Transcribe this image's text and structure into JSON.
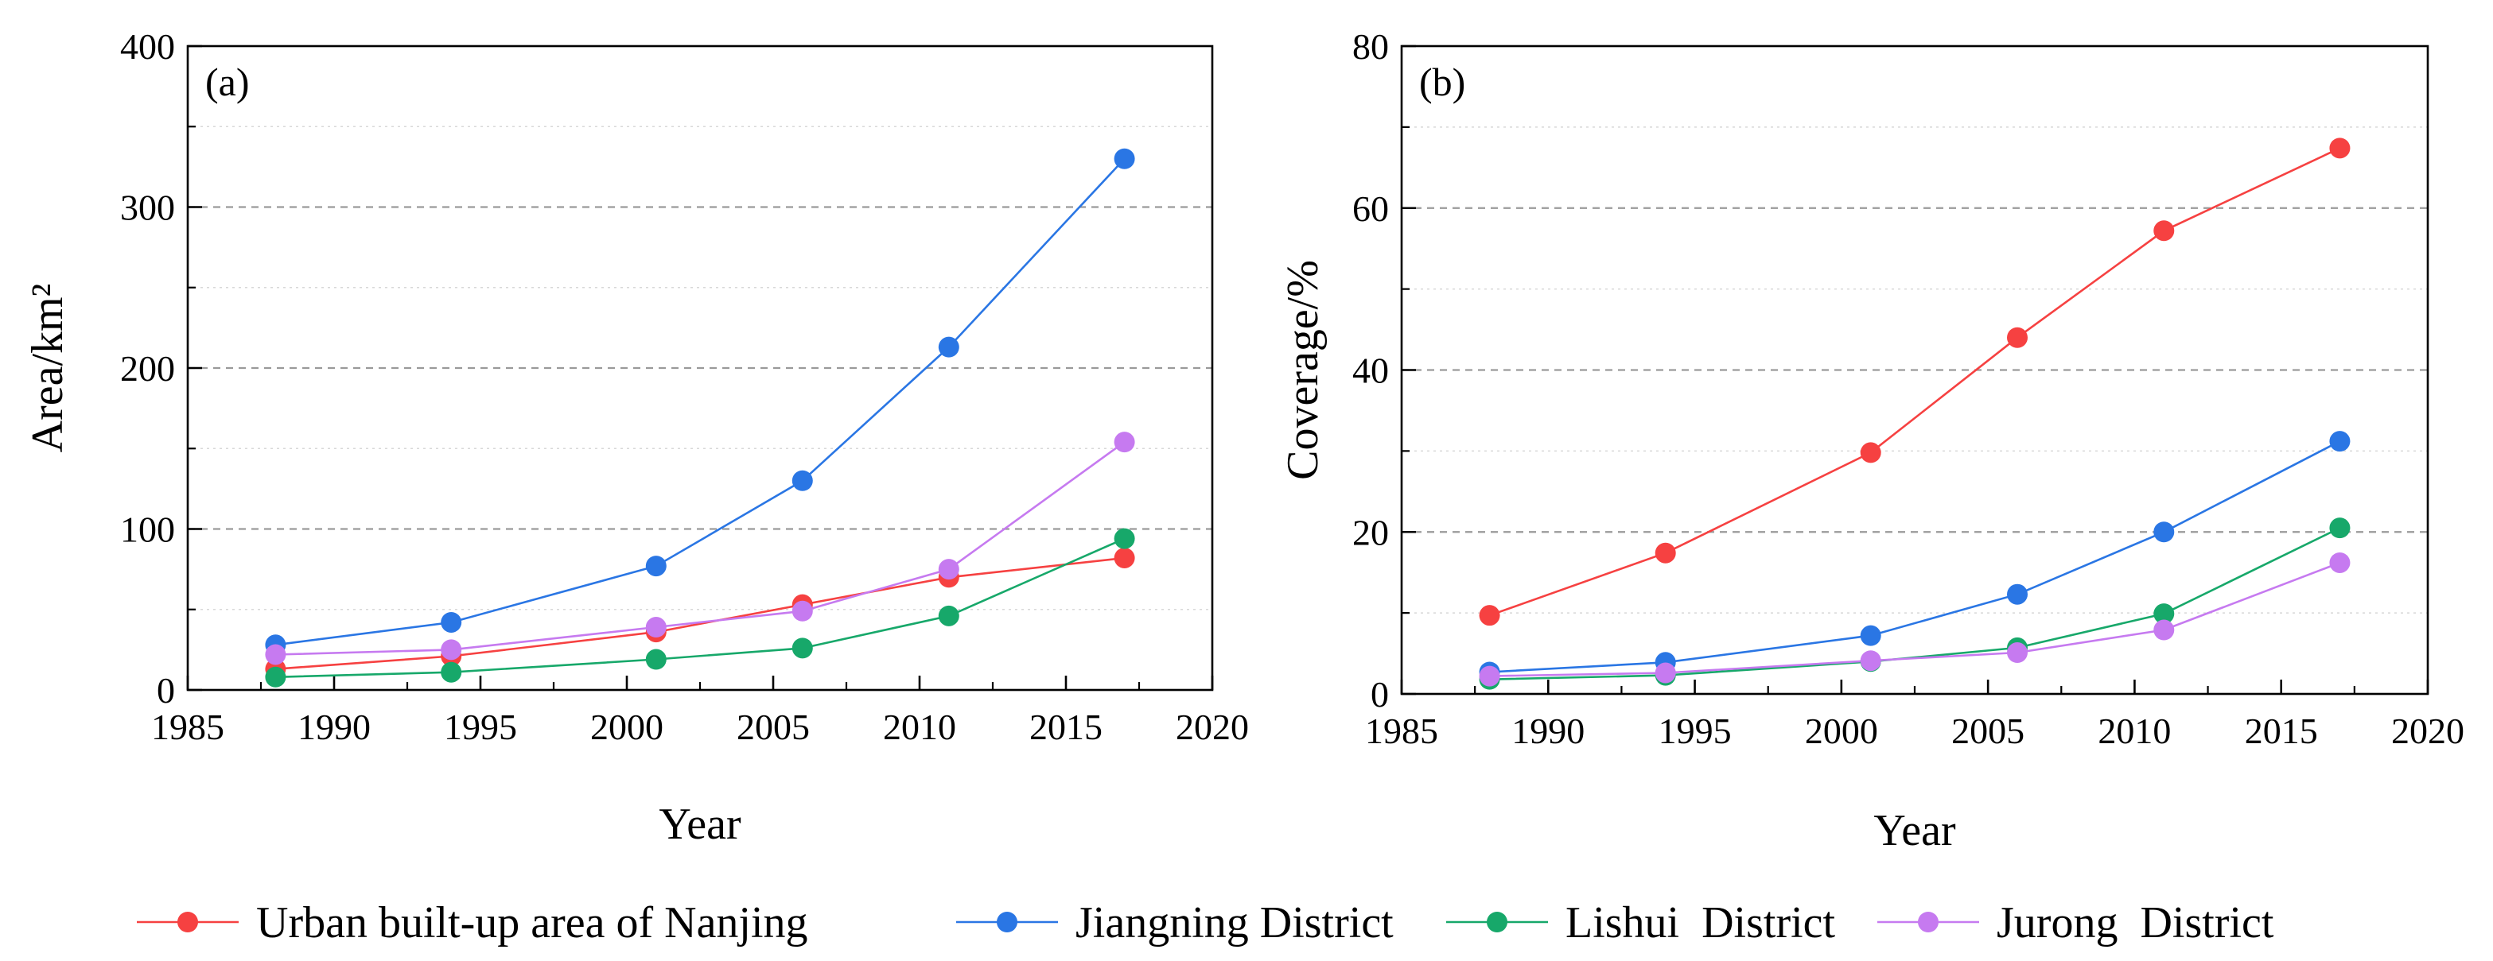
{
  "legend": [
    {
      "name": "Urban built-up area of Nanjing",
      "color": "#f64141"
    },
    {
      "name": "Jiangning District",
      "color": "#2a76e4"
    },
    {
      "name": "Lishui  District",
      "color": "#17a86a"
    },
    {
      "name": "Jurong  District",
      "color": "#c67af0"
    }
  ],
  "chart_data": [
    {
      "type": "line",
      "panel_label": "(a)",
      "title": "",
      "xlabel": "Year",
      "ylabel": "Area/km²",
      "xlim": [
        1985,
        2020
      ],
      "ylim": [
        0,
        400
      ],
      "x_ticks": [
        1985,
        1990,
        1995,
        2000,
        2005,
        2010,
        2015,
        2020
      ],
      "y_ticks": [
        0,
        100,
        200,
        300,
        400
      ],
      "grid": "horizontal dashed",
      "x": [
        1988,
        1994,
        2001,
        2006,
        2011,
        2017
      ],
      "series": [
        {
          "name": "Urban built-up area of Nanjing",
          "color": "#f64141",
          "values": [
            13,
            21,
            36,
            53,
            70,
            82
          ]
        },
        {
          "name": "Jiangning District",
          "color": "#2a76e4",
          "values": [
            28,
            42,
            77,
            130,
            213,
            330
          ]
        },
        {
          "name": "Lishui  District",
          "color": "#17a86a",
          "values": [
            8,
            11,
            19,
            26,
            46,
            94
          ]
        },
        {
          "name": "Jurong  District",
          "color": "#c67af0",
          "values": [
            22,
            25,
            39,
            49,
            75,
            154
          ]
        }
      ]
    },
    {
      "type": "line",
      "panel_label": "(b)",
      "title": "",
      "xlabel": "Year",
      "ylabel": "Coverage/%",
      "xlim": [
        1985,
        2020
      ],
      "ylim": [
        0,
        80
      ],
      "x_ticks": [
        1985,
        1990,
        1995,
        2000,
        2005,
        2010,
        2015,
        2020
      ],
      "y_ticks": [
        0,
        20,
        40,
        60,
        80
      ],
      "grid": "horizontal dashed",
      "x": [
        1988,
        1994,
        2001,
        2006,
        2011,
        2017
      ],
      "series": [
        {
          "name": "Urban built-up area of Nanjing",
          "color": "#f64141",
          "values": [
            9.7,
            17.4,
            29.8,
            44.0,
            57.2,
            67.4
          ]
        },
        {
          "name": "Jiangning District",
          "color": "#2a76e4",
          "values": [
            2.7,
            3.9,
            7.2,
            12.3,
            20.0,
            31.2
          ]
        },
        {
          "name": "Lishui  District",
          "color": "#17a86a",
          "values": [
            1.8,
            2.3,
            4.0,
            5.7,
            9.9,
            20.5
          ]
        },
        {
          "name": "Jurong  District",
          "color": "#c67af0",
          "values": [
            2.2,
            2.6,
            4.1,
            5.1,
            7.9,
            16.2
          ]
        }
      ]
    }
  ]
}
